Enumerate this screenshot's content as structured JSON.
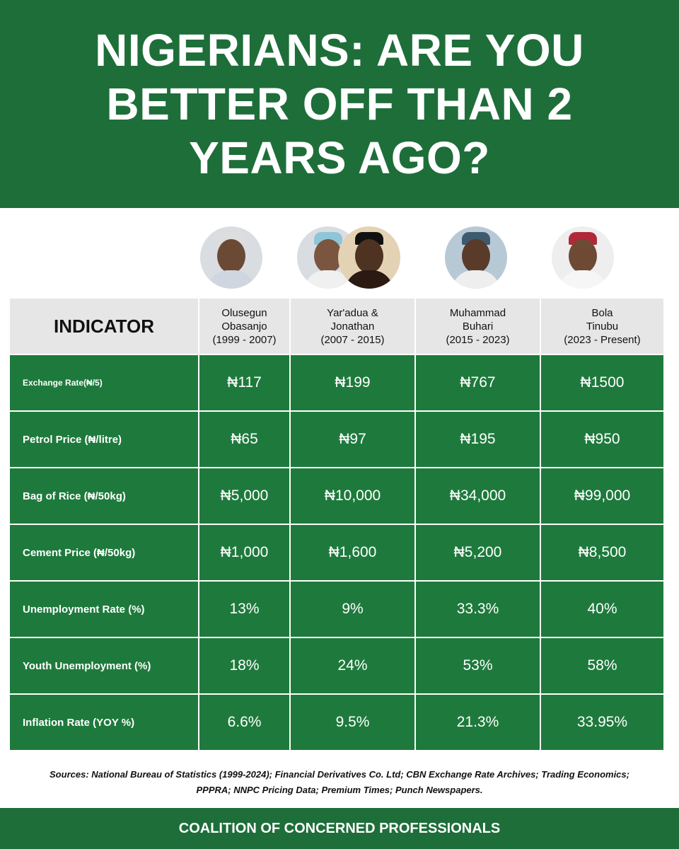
{
  "title": "NIGERIANS: ARE YOU BETTER OFF THAN 2 YEARS AGO?",
  "colors": {
    "brand_green": "#1e6e3a",
    "cell_green": "#1e7a3c",
    "header_gray": "#e6e6e6"
  },
  "table": {
    "indicator_header": "INDICATOR",
    "columns": [
      {
        "name1": "Olusegun",
        "name2": "Obasanjo",
        "years": "(1999 - 2007)"
      },
      {
        "name1": "Yar'adua &",
        "name2": "Jonathan",
        "years": "(2007 - 2015)"
      },
      {
        "name1": "Muhammad",
        "name2": "Buhari",
        "years": "(2015 - 2023)"
      },
      {
        "name1": "Bola",
        "name2": "Tinubu",
        "years": "(2023 - Present)"
      }
    ],
    "rows": [
      {
        "label": "Exchange Rate(₦/5)",
        "values": [
          "₦117",
          "₦199",
          "₦767",
          "₦1500"
        ]
      },
      {
        "label": "Petrol Price (₦/litre)",
        "values": [
          "₦65",
          "₦97",
          "₦195",
          "₦950"
        ]
      },
      {
        "label": "Bag of Rice (₦/50kg)",
        "values": [
          "₦5,000",
          "₦10,000",
          "₦34,000",
          "₦99,000"
        ]
      },
      {
        "label": "Cement Price (₦/50kg)",
        "values": [
          "₦1,000",
          "₦1,600",
          "₦5,200",
          "₦8,500"
        ]
      },
      {
        "label": "Unemployment Rate (%)",
        "values": [
          "13%",
          "9%",
          "33.3%",
          "40%"
        ]
      },
      {
        "label": "Youth Unemployment (%)",
        "values": [
          "18%",
          "24%",
          "53%",
          "58%"
        ]
      },
      {
        "label": "Inflation Rate (YOY %)",
        "values": [
          "6.6%",
          "9.5%",
          "21.3%",
          "33.95%"
        ]
      }
    ]
  },
  "sources": "Sources: National Bureau of Statistics (1999-2024); Financial Derivatives Co. Ltd; CBN Exchange Rate Archives; Trading Economics; PPPRA; NNPC Pricing Data; Premium Times; Punch Newspapers.",
  "footer": "COALITION OF CONCERNED PROFESSIONALS"
}
